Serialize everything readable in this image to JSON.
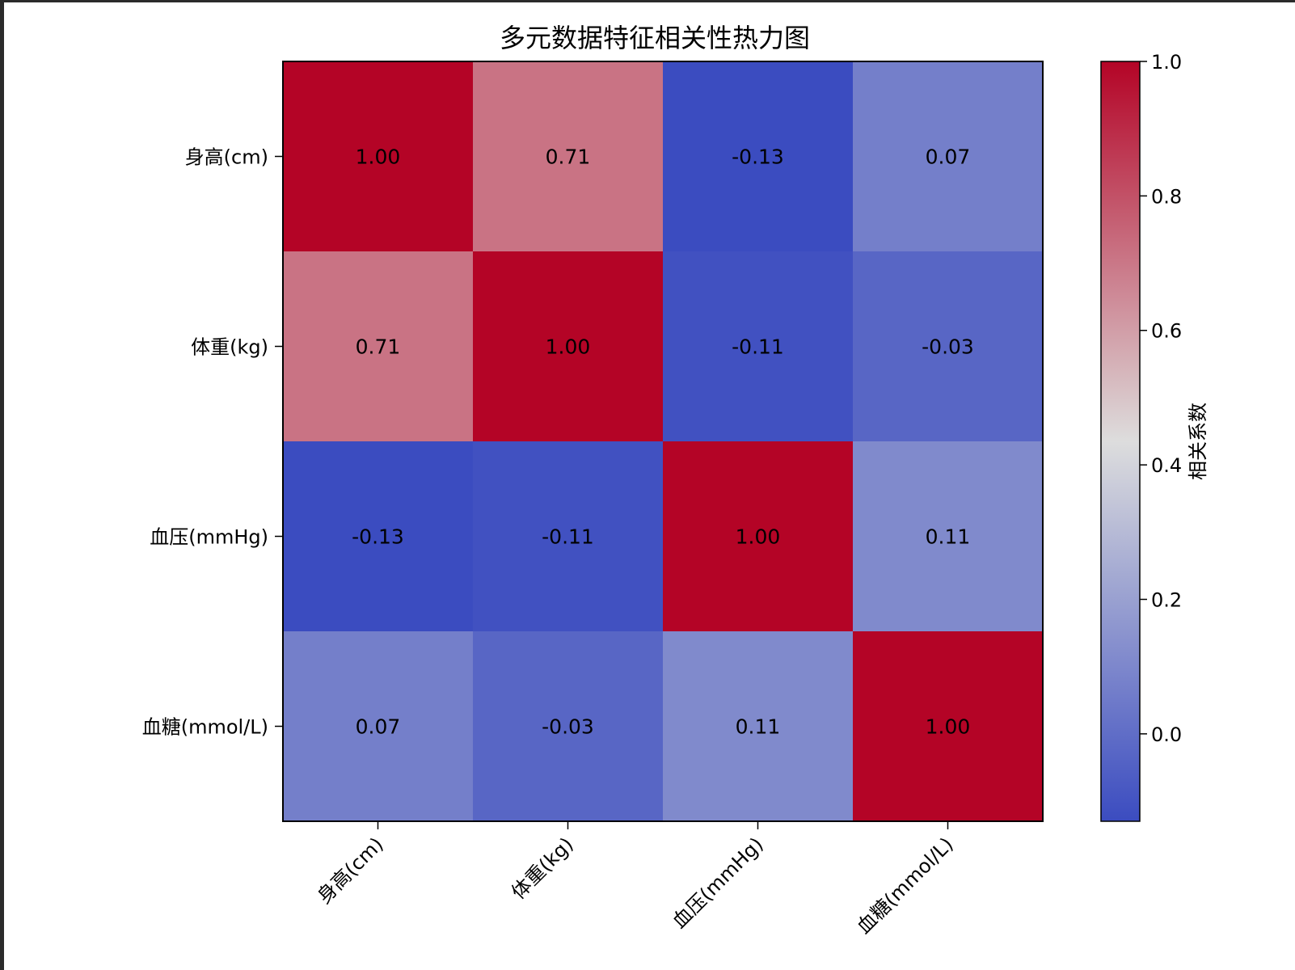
{
  "colors": {
    "map_low": "#3b4cc0",
    "map_mid": "#dddddd",
    "map_high": "#b40426",
    "text": "#000000"
  },
  "chart_data": {
    "type": "heatmap",
    "title": "多元数据特征相关性热力图",
    "row_labels": [
      "身高(cm)",
      "体重(kg)",
      "血压(mmHg)",
      "血糖(mmol/L)"
    ],
    "col_labels": [
      "身高(cm)",
      "体重(kg)",
      "血压(mmHg)",
      "血糖(mmol/L)"
    ],
    "values": [
      [
        1.0,
        0.71,
        -0.13,
        0.07
      ],
      [
        0.71,
        1.0,
        -0.11,
        -0.03
      ],
      [
        -0.13,
        -0.11,
        1.0,
        0.11
      ],
      [
        0.07,
        -0.03,
        0.11,
        1.0
      ]
    ],
    "cell_labels": [
      [
        "1.00",
        "0.71",
        "-0.13",
        "0.07"
      ],
      [
        "0.71",
        "1.00",
        "-0.11",
        "-0.03"
      ],
      [
        "-0.13",
        "-0.11",
        "1.00",
        "0.11"
      ],
      [
        "0.07",
        "-0.03",
        "0.11",
        "1.00"
      ]
    ],
    "colormap": "coolwarm",
    "vmin": -0.13,
    "vmax": 1.0,
    "colorbar": {
      "label": "相关系数",
      "ticks": [
        0.0,
        0.2,
        0.4,
        0.6,
        0.8,
        1.0
      ],
      "tick_labels": [
        "0.0",
        "0.2",
        "0.4",
        "0.6",
        "0.8",
        "1.0"
      ]
    },
    "xtick_rotation": "45°"
  }
}
